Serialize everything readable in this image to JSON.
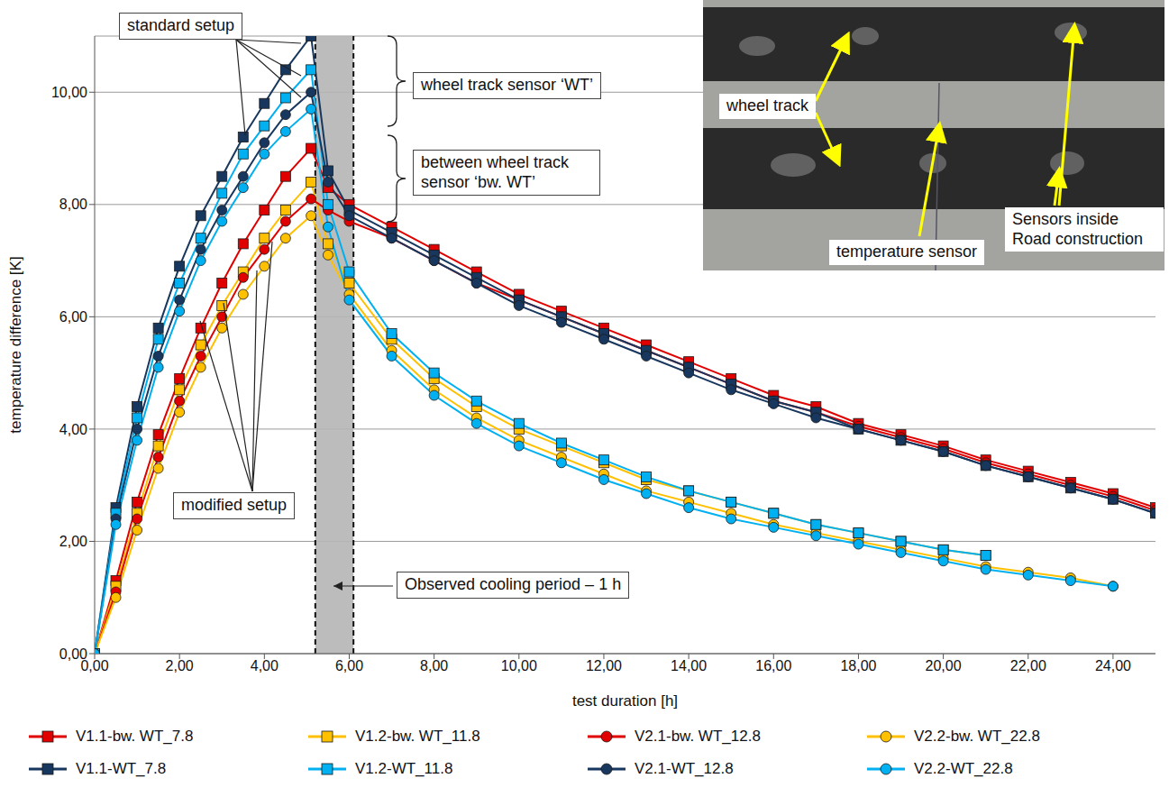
{
  "chart_data": {
    "type": "line",
    "x_label": "test duration [h]",
    "y_label": "temperature difference [K]",
    "xlim": [
      0,
      25
    ],
    "ylim": [
      0,
      11
    ],
    "xticks": [
      {
        "value": 0,
        "label": "0,00"
      },
      {
        "value": 2,
        "label": "2,00"
      },
      {
        "value": 4,
        "label": "4,00"
      },
      {
        "value": 6,
        "label": "6,00"
      },
      {
        "value": 8,
        "label": "8,00"
      },
      {
        "value": 10,
        "label": "10,00"
      },
      {
        "value": 12,
        "label": "12,00"
      },
      {
        "value": 14,
        "label": "14,00"
      },
      {
        "value": 16,
        "label": "16,00"
      },
      {
        "value": 18,
        "label": "18,00"
      },
      {
        "value": 20,
        "label": "20,00"
      },
      {
        "value": 22,
        "label": "22,00"
      },
      {
        "value": 24,
        "label": "24,00"
      }
    ],
    "yticks": [
      {
        "value": 0,
        "label": "0,00"
      },
      {
        "value": 2,
        "label": "2,00"
      },
      {
        "value": 4,
        "label": "4,00"
      },
      {
        "value": 6,
        "label": "6,00"
      },
      {
        "value": 8,
        "label": "8,00"
      },
      {
        "value": 10,
        "label": "10,00"
      }
    ],
    "grid": true,
    "legend": "bottom",
    "cooling_period": [
      5.2,
      6.1
    ],
    "annotations": {
      "standard_setup": "standard setup",
      "modified_setup": "modified setup",
      "wt_sensor": "wheel track sensor ‘WT’",
      "bw_sensor": "between wheel track sensor ‘bw. WT’",
      "cooling": "Observed cooling period – 1 h"
    },
    "inset": {
      "wheel_track": "wheel track",
      "temperature_sensor": "temperature sensor",
      "sensors": "Sensors inside Road construction"
    },
    "x": [
      0,
      0.5,
      1,
      1.5,
      2,
      2.5,
      3,
      3.5,
      4,
      4.5,
      5.1,
      5.5,
      6,
      7,
      8,
      9,
      10,
      11,
      12,
      13,
      14,
      15,
      16,
      17,
      18,
      19,
      20,
      21,
      22,
      23,
      24,
      25
    ],
    "series": [
      {
        "name": "V1.1-bw. WT_7.8",
        "color": "#e00000",
        "marker": "square",
        "values": [
          0,
          1.3,
          2.7,
          3.9,
          4.9,
          5.8,
          6.6,
          7.3,
          7.9,
          8.5,
          9.0,
          8.3,
          8.0,
          7.6,
          7.2,
          6.8,
          6.4,
          6.1,
          5.8,
          5.5,
          5.2,
          4.9,
          4.6,
          4.4,
          4.1,
          3.9,
          3.7,
          3.45,
          3.25,
          3.05,
          2.85,
          2.6
        ]
      },
      {
        "name": "V1.2-bw. WT_11.8",
        "color": "#ffc000",
        "marker": "square",
        "values": [
          0,
          1.2,
          2.5,
          3.7,
          4.7,
          5.5,
          6.2,
          6.8,
          7.4,
          7.9,
          8.4,
          7.3,
          6.6,
          5.6,
          4.9,
          4.4,
          4.0,
          3.7,
          3.4,
          3.1,
          2.9,
          2.7,
          2.5,
          2.3,
          2.15,
          2.0,
          1.85,
          1.75,
          null,
          null,
          null,
          null
        ]
      },
      {
        "name": "V2.1-bw. WT_12.8",
        "color": "#e00000",
        "marker": "circle",
        "values": [
          0,
          1.1,
          2.4,
          3.5,
          4.5,
          5.3,
          6.0,
          6.7,
          7.2,
          7.7,
          8.1,
          7.9,
          7.7,
          7.4,
          7.0,
          6.6,
          6.3,
          6.0,
          5.7,
          5.4,
          5.1,
          4.8,
          4.5,
          4.3,
          4.05,
          3.85,
          3.65,
          3.4,
          3.2,
          3.0,
          2.8,
          2.55
        ]
      },
      {
        "name": "V2.2-bw. WT_22.8",
        "color": "#ffc000",
        "marker": "circle",
        "values": [
          0,
          1.0,
          2.2,
          3.3,
          4.3,
          5.1,
          5.8,
          6.4,
          6.9,
          7.4,
          7.8,
          7.1,
          6.4,
          5.4,
          4.7,
          4.2,
          3.8,
          3.5,
          3.2,
          2.9,
          2.7,
          2.5,
          2.3,
          2.15,
          2.0,
          1.85,
          1.7,
          1.55,
          1.45,
          1.35,
          1.2,
          null
        ]
      },
      {
        "name": "V1.1-WT_7.8",
        "color": "#17375e",
        "marker": "square",
        "values": [
          0,
          2.6,
          4.4,
          5.8,
          6.9,
          7.8,
          8.5,
          9.2,
          9.8,
          10.4,
          11.0,
          8.6,
          7.9,
          7.5,
          7.1,
          6.7,
          6.3,
          6.0,
          5.7,
          5.4,
          5.1,
          4.8,
          4.5,
          4.3,
          4.0,
          3.8,
          3.6,
          3.35,
          3.15,
          2.95,
          2.75,
          2.5
        ]
      },
      {
        "name": "V1.2-WT_11.8",
        "color": "#00b0f0",
        "marker": "square",
        "values": [
          0,
          2.5,
          4.2,
          5.6,
          6.6,
          7.4,
          8.2,
          8.9,
          9.4,
          9.9,
          10.4,
          8.0,
          6.8,
          5.7,
          5.0,
          4.5,
          4.1,
          3.75,
          3.45,
          3.15,
          2.9,
          2.7,
          2.5,
          2.3,
          2.15,
          2.0,
          1.85,
          1.75,
          null,
          null,
          null,
          null
        ]
      },
      {
        "name": "V2.1-WT_12.8",
        "color": "#17375e",
        "marker": "circle",
        "values": [
          0,
          2.4,
          4.0,
          5.3,
          6.3,
          7.2,
          7.9,
          8.5,
          9.1,
          9.6,
          10.0,
          8.4,
          7.8,
          7.4,
          7.0,
          6.6,
          6.2,
          5.9,
          5.6,
          5.3,
          5.0,
          4.7,
          4.45,
          4.2,
          4.0,
          3.8,
          3.6,
          3.35,
          3.15,
          2.95,
          2.75,
          2.5
        ]
      },
      {
        "name": "V2.2-WT_22.8",
        "color": "#00b0f0",
        "marker": "circle",
        "values": [
          0,
          2.3,
          3.8,
          5.1,
          6.1,
          7.0,
          7.7,
          8.3,
          8.9,
          9.3,
          9.7,
          7.6,
          6.3,
          5.3,
          4.6,
          4.1,
          3.7,
          3.4,
          3.1,
          2.85,
          2.6,
          2.4,
          2.25,
          2.1,
          1.95,
          1.8,
          1.65,
          1.5,
          1.4,
          1.3,
          1.2,
          null
        ]
      }
    ]
  }
}
